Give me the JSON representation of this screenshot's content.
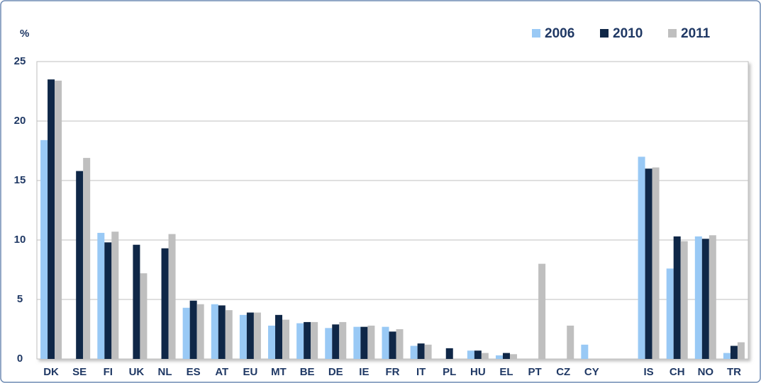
{
  "chart_data": {
    "type": "bar",
    "ylabel": "%",
    "categories": [
      "DK",
      "SE",
      "FI",
      "UK",
      "NL",
      "ES",
      "AT",
      "EU",
      "MT",
      "BE",
      "DE",
      "IE",
      "FR",
      "IT",
      "PL",
      "HU",
      "EL",
      "PT",
      "CZ",
      "CY",
      null,
      "IS",
      "CH",
      "NO",
      "TR"
    ],
    "series": [
      {
        "name": "2006",
        "color": "#99c9f5",
        "values": [
          18.4,
          null,
          10.6,
          null,
          null,
          4.3,
          4.6,
          3.7,
          2.8,
          3.0,
          2.6,
          2.7,
          2.7,
          1.1,
          null,
          0.7,
          0.3,
          null,
          null,
          1.2,
          null,
          17.0,
          7.6,
          10.3,
          0.5
        ]
      },
      {
        "name": "2010",
        "color": "#0f2747",
        "values": [
          23.5,
          15.8,
          9.8,
          9.6,
          9.3,
          4.9,
          4.5,
          3.9,
          3.7,
          3.1,
          2.9,
          2.7,
          2.3,
          1.3,
          0.9,
          0.7,
          0.5,
          null,
          null,
          null,
          null,
          16.0,
          10.3,
          10.1,
          1.1
        ]
      },
      {
        "name": "2011",
        "color": "#bfbfbf",
        "values": [
          23.4,
          16.9,
          10.7,
          7.2,
          10.5,
          4.6,
          4.1,
          3.9,
          3.3,
          3.1,
          3.1,
          2.8,
          2.5,
          1.2,
          null,
          0.5,
          0.4,
          8.0,
          2.8,
          null,
          null,
          16.1,
          9.9,
          10.4,
          1.4
        ]
      }
    ],
    "ylim": [
      0,
      25
    ],
    "yticks": [
      0,
      5,
      10,
      15,
      20,
      25
    ],
    "grid": true,
    "legend": "top-right"
  }
}
